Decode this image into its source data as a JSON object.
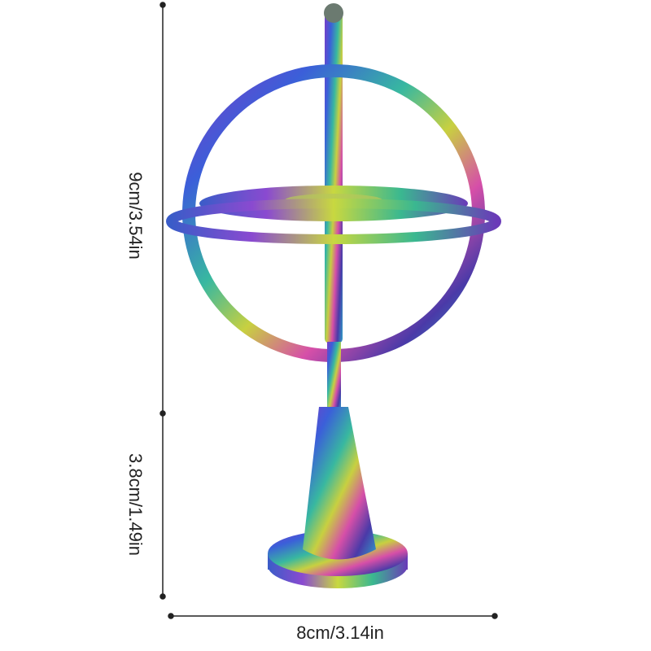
{
  "dimensions": {
    "height": "9cm/3.54in",
    "base_height": "3.8cm/1.49in",
    "width": "8cm/3.14in"
  }
}
